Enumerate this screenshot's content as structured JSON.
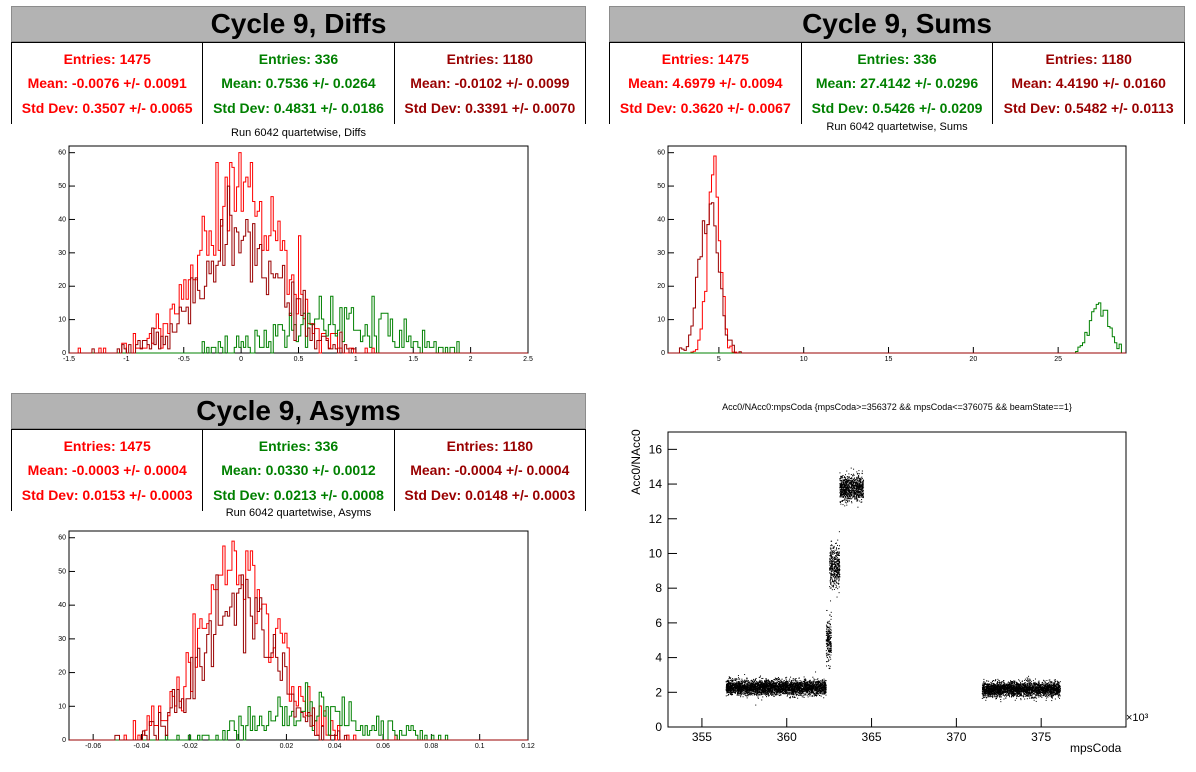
{
  "colors": {
    "red": "#ff0000",
    "green": "#008000",
    "darkred": "#990000",
    "black": "#000000"
  },
  "panels": {
    "diffs": {
      "title": "Cycle 9, Diffs",
      "subtitle": "Run 6042 quartetwise, Diffs",
      "stats": [
        {
          "entries": "Entries: 1475",
          "mean": "Mean: -0.0076 +/- 0.0091",
          "std": "Std Dev: 0.3507 +/- 0.0065"
        },
        {
          "entries": "Entries: 336",
          "mean": "Mean: 0.7536 +/- 0.0264",
          "std": "Std Dev: 0.4831 +/- 0.0186"
        },
        {
          "entries": "Entries: 1180",
          "mean": "Mean: -0.0102 +/- 0.0099",
          "std": "Std Dev: 0.3391 +/- 0.0070"
        }
      ]
    },
    "sums": {
      "title": "Cycle 9, Sums",
      "subtitle": "Run 6042 quartetwise, Sums",
      "stats": [
        {
          "entries": "Entries: 1475",
          "mean": "Mean: 4.6979 +/- 0.0094",
          "std": "Std Dev: 0.3620 +/- 0.0067"
        },
        {
          "entries": "Entries: 336",
          "mean": "Mean: 27.4142 +/- 0.0296",
          "std": "Std Dev: 0.5426 +/- 0.0209"
        },
        {
          "entries": "Entries: 1180",
          "mean": "Mean: 4.4190 +/- 0.0160",
          "std": "Std Dev: 0.5482 +/- 0.0113"
        }
      ]
    },
    "asyms": {
      "title": "Cycle 9, Asyms",
      "subtitle": "Run 6042 quartetwise, Asyms",
      "stats": [
        {
          "entries": "Entries: 1475",
          "mean": "Mean: -0.0003 +/- 0.0004",
          "std": "Std Dev: 0.0153 +/- 0.0003"
        },
        {
          "entries": "Entries: 336",
          "mean": "Mean: 0.0330 +/- 0.0012",
          "std": "Std Dev: 0.0213 +/- 0.0008"
        },
        {
          "entries": "Entries: 1180",
          "mean": "Mean: -0.0004 +/- 0.0004",
          "std": "Std Dev: 0.0148 +/- 0.0003"
        }
      ]
    },
    "scatter": {
      "title": "Acc0/NAcc0:mpsCoda {mpsCoda>=356372 && mpsCoda<=376075 && beamState==1}",
      "ylabel": "Acc0/NAcc0",
      "xlabel": "mpsCoda",
      "exponent": "×10³"
    }
  },
  "chart_data": [
    {
      "type": "histogram",
      "title": "Run 6042 quartetwise, Diffs",
      "xlim": [
        -1.5,
        2.5
      ],
      "ylim": [
        0,
        62
      ],
      "xticks": [
        -1.5,
        -1,
        -0.5,
        0,
        0.5,
        1,
        1.5,
        2,
        2.5
      ],
      "yticks": [
        0,
        10,
        20,
        30,
        40,
        50,
        60
      ],
      "series": [
        {
          "color": "#ff0000",
          "mean": -0.0076,
          "std": 0.3507,
          "entries": 1475,
          "peak": 60
        },
        {
          "color": "#008000",
          "mean": 0.7536,
          "std": 0.4831,
          "entries": 336,
          "peak": 17
        },
        {
          "color": "#990000",
          "mean": -0.0102,
          "std": 0.3391,
          "entries": 1180,
          "peak": 50
        }
      ]
    },
    {
      "type": "histogram",
      "title": "Run 6042 quartetwise, Sums",
      "xlim": [
        2,
        29
      ],
      "ylim": [
        0,
        62
      ],
      "xticks": [
        5,
        10,
        15,
        20,
        25
      ],
      "yticks": [
        0,
        10,
        20,
        30,
        40,
        50,
        60
      ],
      "series": [
        {
          "color": "#ff0000",
          "mean": 4.6979,
          "std": 0.362,
          "entries": 1475,
          "peak": 59
        },
        {
          "color": "#008000",
          "mean": 27.4142,
          "std": 0.5426,
          "entries": 336,
          "peak": 15
        },
        {
          "color": "#990000",
          "mean": 4.419,
          "std": 0.5482,
          "entries": 1180,
          "peak": 45
        }
      ]
    },
    {
      "type": "histogram",
      "title": "Run 6042 quartetwise, Asyms",
      "xlim": [
        -0.07,
        0.12
      ],
      "ylim": [
        0,
        62
      ],
      "xticks": [
        -0.06,
        -0.04,
        -0.02,
        0,
        0.02,
        0.04,
        0.06,
        0.08,
        0.1,
        0.12
      ],
      "yticks": [
        0,
        10,
        20,
        30,
        40,
        50,
        60
      ],
      "series": [
        {
          "color": "#ff0000",
          "mean": -0.0003,
          "std": 0.0153,
          "entries": 1475,
          "peak": 59
        },
        {
          "color": "#008000",
          "mean": 0.033,
          "std": 0.0213,
          "entries": 336,
          "peak": 17
        },
        {
          "color": "#990000",
          "mean": -0.0004,
          "std": 0.0148,
          "entries": 1180,
          "peak": 49
        }
      ]
    },
    {
      "type": "scatter",
      "title": "Acc0/NAcc0:mpsCoda {mpsCoda>=356372 && mpsCoda<=376075 && beamState==1}",
      "xlabel": "mpsCoda",
      "ylabel": "Acc0/NAcc0",
      "xlim": [
        353,
        380
      ],
      "ylim": [
        0,
        17
      ],
      "xticks": [
        355,
        360,
        365,
        370,
        375
      ],
      "yticks": [
        0,
        2,
        4,
        6,
        8,
        10,
        12,
        14,
        16
      ],
      "clusters": [
        {
          "x": [
            356.4,
            362.3
          ],
          "y": [
            2.3,
            0.35
          ]
        },
        {
          "x": [
            362.3,
            362.6
          ],
          "y": [
            5.0,
            1.0
          ]
        },
        {
          "x": [
            362.5,
            363.1
          ],
          "y": [
            9.3,
            1.0
          ]
        },
        {
          "x": [
            363.1,
            364.5
          ],
          "y": [
            13.8,
            0.6
          ]
        },
        {
          "x": [
            371.5,
            376.1
          ],
          "y": [
            2.2,
            0.35
          ]
        }
      ]
    }
  ]
}
